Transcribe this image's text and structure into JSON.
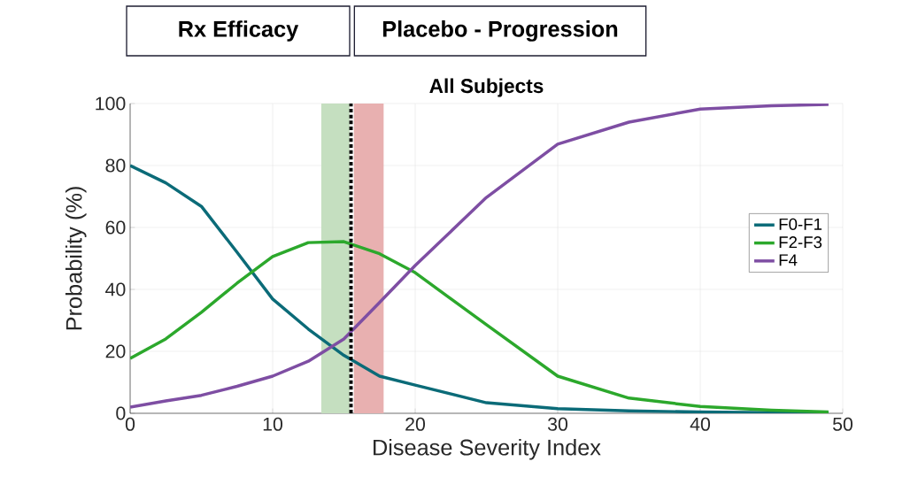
{
  "chart_data": {
    "type": "line",
    "title": "All Subjects",
    "xlabel": "Disease Severity Index",
    "ylabel": "Probability (%)",
    "annotations": [
      "Rx Efficacy",
      "Placebo - Progression"
    ],
    "x": [
      0,
      2.5,
      5,
      7.5,
      10,
      12.5,
      15,
      17.5,
      20,
      25,
      30,
      35,
      40,
      45,
      49
    ],
    "series": [
      {
        "name": "F0-F1",
        "color": "#0b6b78",
        "values": [
          80,
          74.4,
          66.8,
          52,
          36.9,
          27.2,
          18.7,
          12,
          9.1,
          3.4,
          1.5,
          0.8,
          0.4,
          0.2,
          0.1
        ]
      },
      {
        "name": "F2-F3",
        "color": "#2ca82c",
        "values": [
          17.7,
          24,
          32.6,
          42,
          50.6,
          55.1,
          55.4,
          51.5,
          45.4,
          28.6,
          12,
          4.9,
          2.2,
          1,
          0.4
        ]
      },
      {
        "name": "F4",
        "color": "#7e4ea3",
        "values": [
          2,
          4,
          5.8,
          8.7,
          12,
          16.8,
          24,
          35.8,
          47.7,
          69.7,
          86.9,
          94,
          98.2,
          99.3,
          99.7
        ]
      }
    ],
    "bands": [
      {
        "axis": "x",
        "from": 13.4,
        "to": 15.4,
        "color": "#c5dfc0"
      },
      {
        "axis": "x",
        "from": 15.7,
        "to": 17.8,
        "color": "#e8b0b0"
      }
    ],
    "ref_lines": [
      {
        "axis": "x",
        "value": 15.5,
        "color": "#000000",
        "line_style": "dotted"
      }
    ],
    "xlim": [
      0,
      50
    ],
    "ylim": [
      0,
      100
    ],
    "xticks": [
      0,
      10,
      20,
      30,
      40,
      50
    ],
    "yticks": [
      0,
      20,
      40,
      60,
      80,
      100
    ],
    "grid": true,
    "legend": "right"
  }
}
